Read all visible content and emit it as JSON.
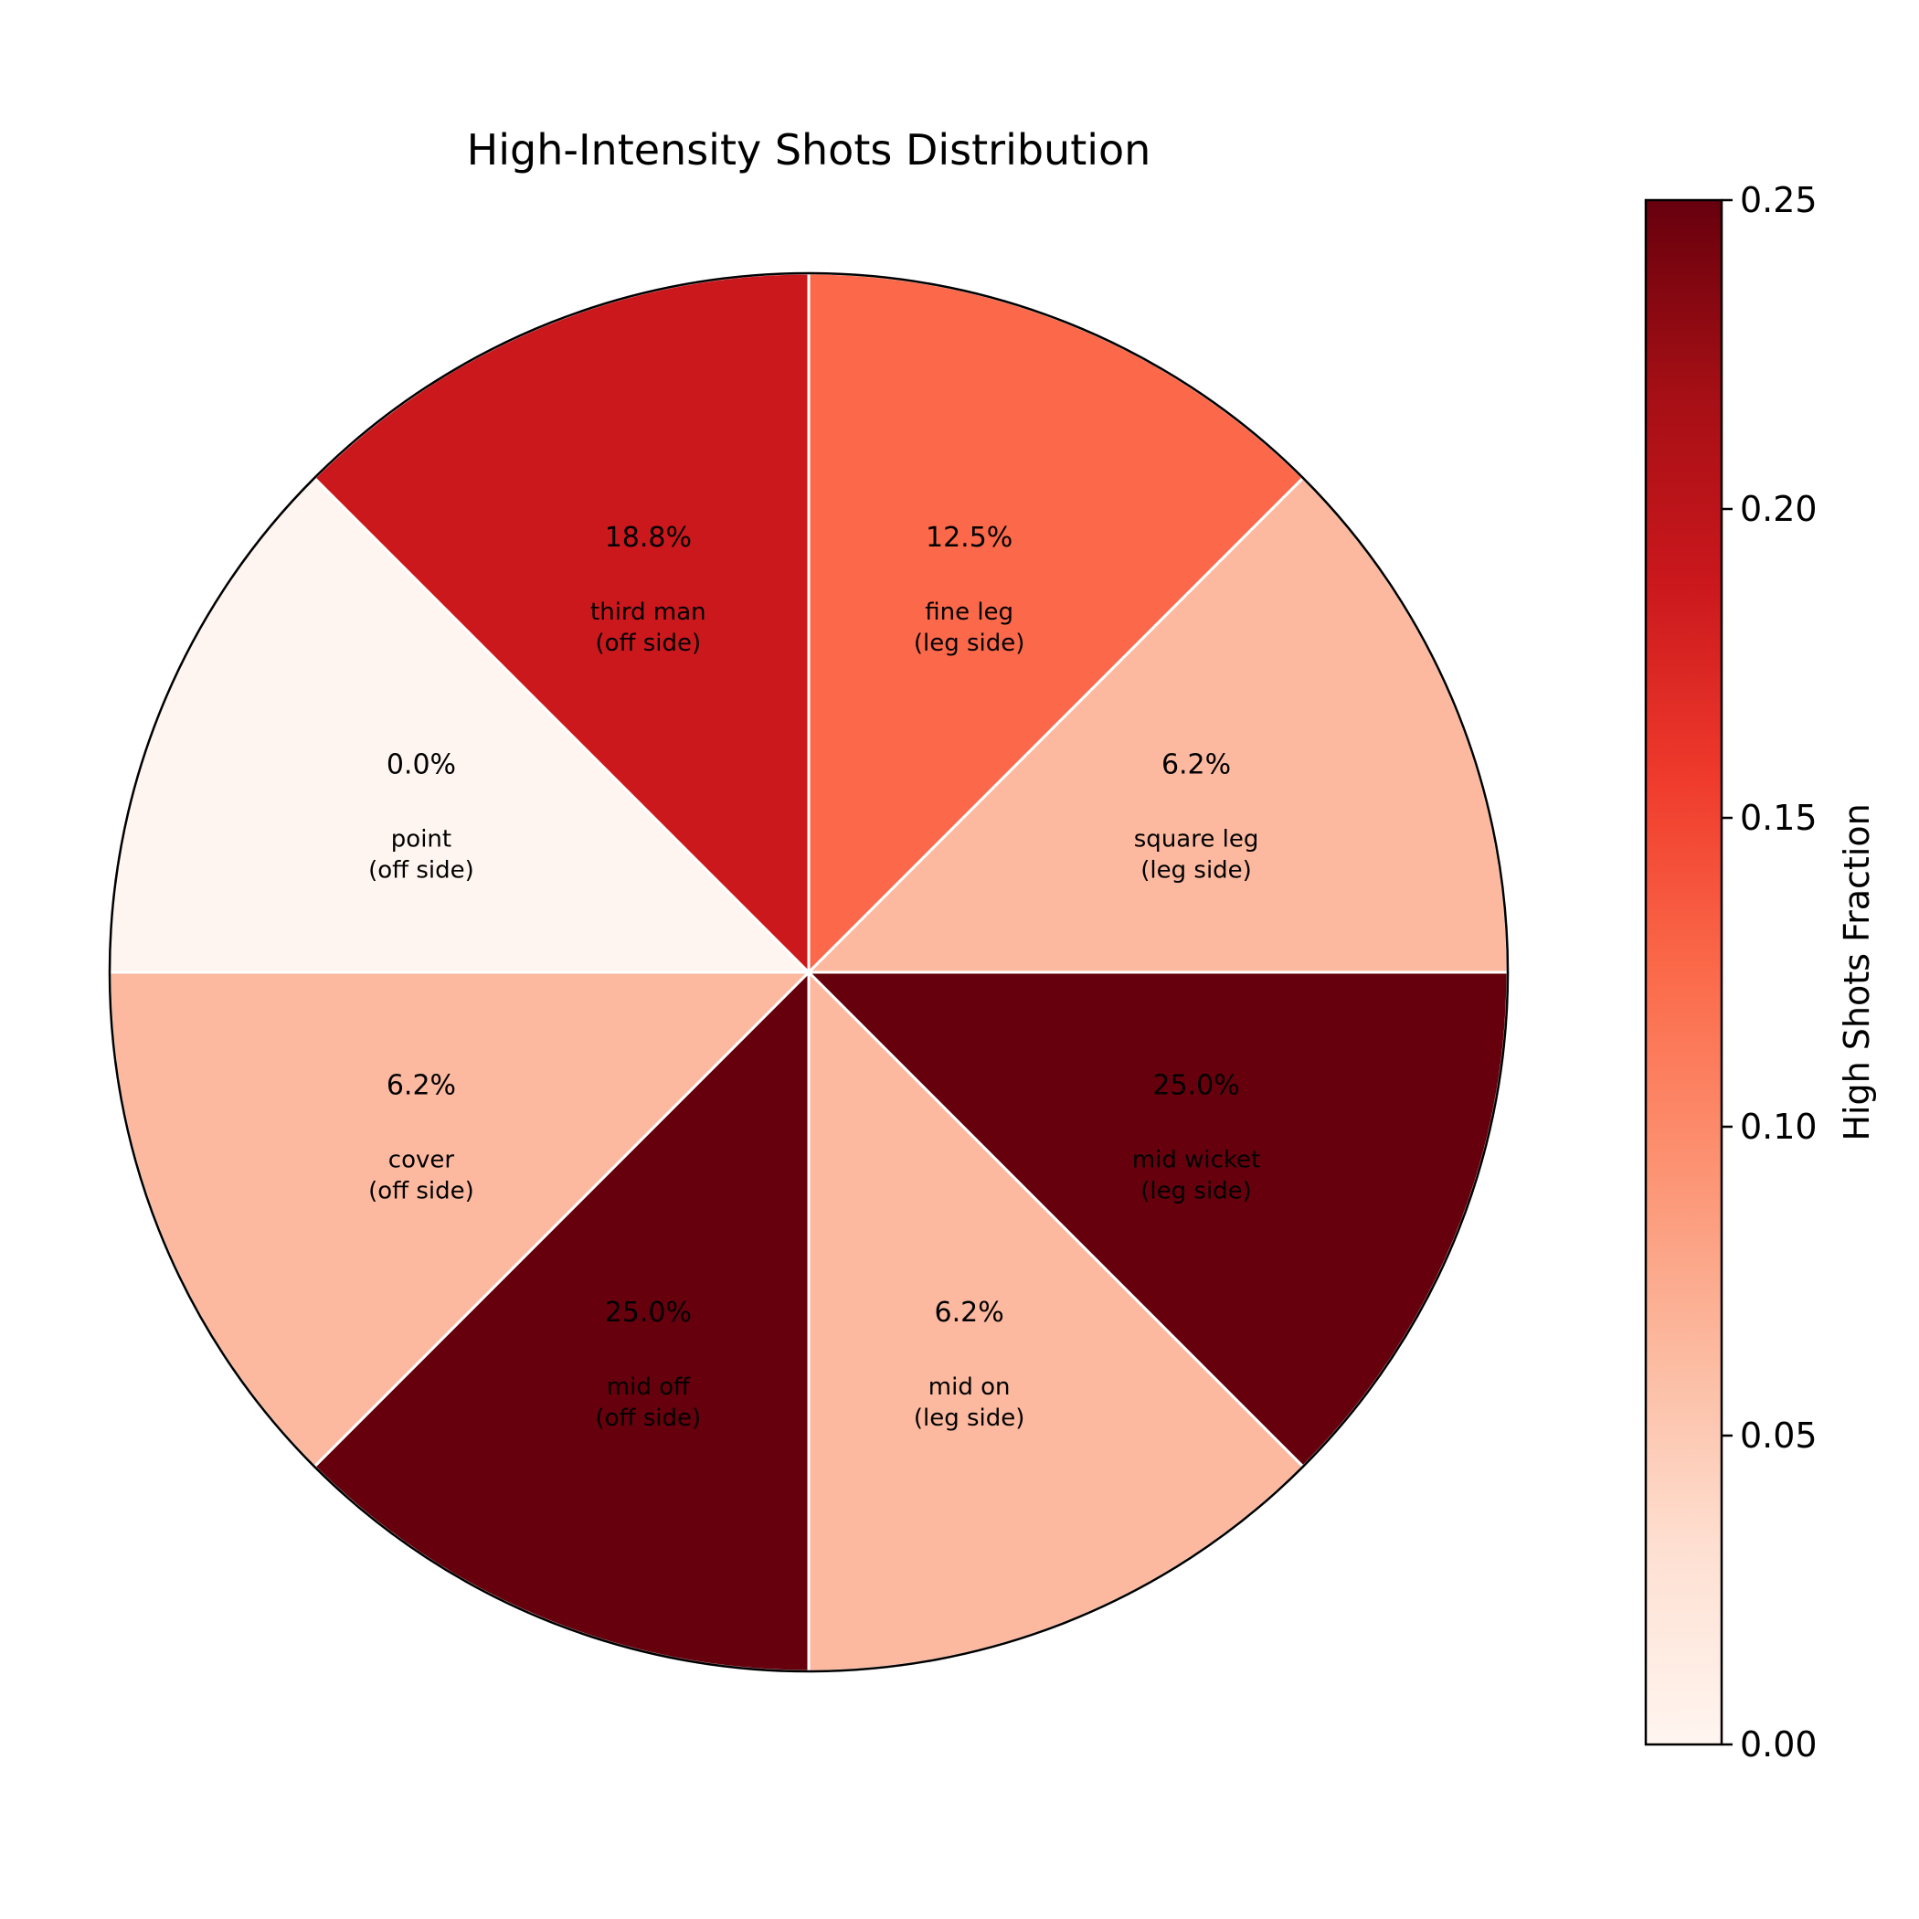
{
  "chart_data": {
    "type": "pie",
    "title": "High-Intensity Shots Distribution",
    "slices": [
      {
        "region": "fine leg",
        "side": "(leg side)",
        "fraction": 0.125,
        "pct_label": "12.5%",
        "color": "#fb694a"
      },
      {
        "region": "square leg",
        "side": "(leg side)",
        "fraction": 0.0625,
        "pct_label": "6.2%",
        "color": "#fcb99f"
      },
      {
        "region": "mid wicket",
        "side": "(leg side)",
        "fraction": 0.25,
        "pct_label": "25.0%",
        "color": "#67000d"
      },
      {
        "region": "mid on",
        "side": "(leg side)",
        "fraction": 0.0625,
        "pct_label": "6.2%",
        "color": "#fcb99f"
      },
      {
        "region": "mid off",
        "side": "(off side)",
        "fraction": 0.25,
        "pct_label": "25.0%",
        "color": "#67000d"
      },
      {
        "region": "cover",
        "side": "(off side)",
        "fraction": 0.0625,
        "pct_label": "6.2%",
        "color": "#fcb99f"
      },
      {
        "region": "point",
        "side": "(off side)",
        "fraction": 0.0,
        "pct_label": "0.0%",
        "color": "#fff5f0"
      },
      {
        "region": "third man",
        "side": "(off side)",
        "fraction": 0.1875,
        "pct_label": "18.8%",
        "color": "#cb181d"
      }
    ],
    "colorbar": {
      "label": "High Shots Fraction",
      "range": [
        0.0,
        0.25
      ],
      "ticks": [
        "0.00",
        "0.05",
        "0.10",
        "0.15",
        "0.20",
        "0.25"
      ],
      "colormap": "Reds",
      "gradient_stops": [
        "#fff5f0",
        "#fee0d2",
        "#fcbba1",
        "#fc9272",
        "#fb6a4a",
        "#ef3b2c",
        "#cb181d",
        "#a50f15",
        "#67000d"
      ]
    }
  }
}
